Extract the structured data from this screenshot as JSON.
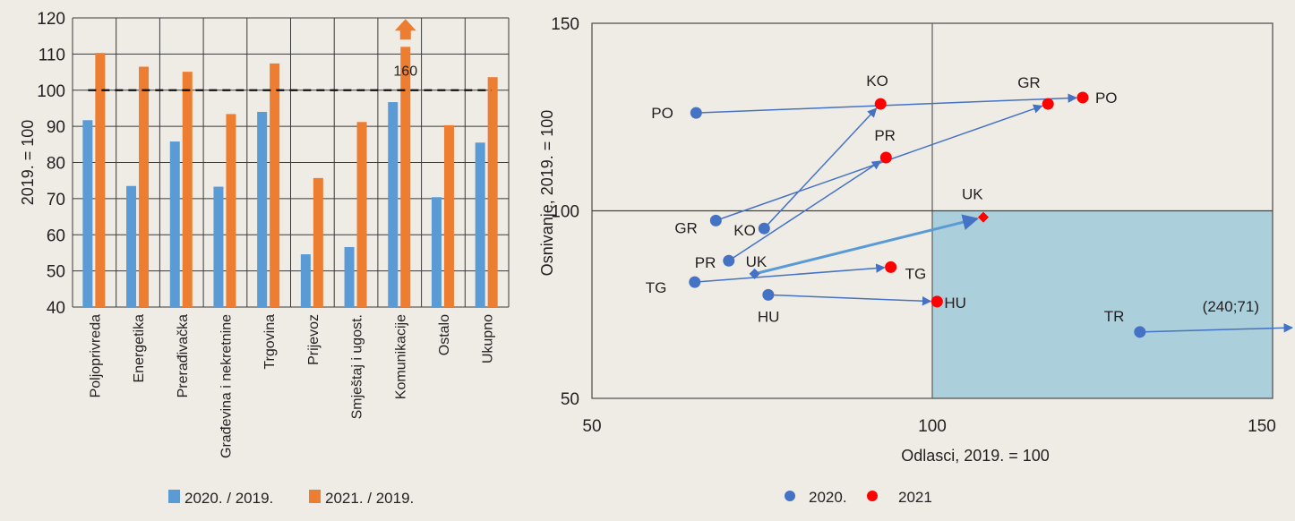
{
  "colors": {
    "background": "#efece6",
    "bar_2020": "#5b9bd5",
    "bar_2021": "#ed7d31",
    "grid": "#3a3a3a",
    "point_2020": "#4472c4",
    "point_2021": "#ff0000",
    "arrow": "#4472c4",
    "arrow_uk": "#5b9bd5",
    "quadrant_fill": "#abd0dc"
  },
  "chart_data": [
    {
      "type": "bar",
      "title": "",
      "xlabel": "",
      "ylabel": "2019. = 100",
      "ylim": [
        40,
        120
      ],
      "yticks": [
        "40",
        "50",
        "60",
        "70",
        "80",
        "90",
        "100",
        "110",
        "120"
      ],
      "grid": true,
      "reference_line": {
        "value": 100,
        "style": "dashed"
      },
      "categories": [
        "Poljoprivreda",
        "Energetika",
        "Prerađivačka",
        "Građevina i nekretnine",
        "Trgovina",
        "Prijevoz",
        "Smještaj i ugost.",
        "Komunikacije",
        "Ostalo",
        "Ukupno"
      ],
      "series": [
        {
          "name": "2020. / 2019.",
          "values": [
            91.7,
            73.5,
            85.8,
            73.3,
            94.0,
            54.6,
            56.6,
            96.7,
            70.4,
            85.5
          ]
        },
        {
          "name": "2021. / 2019.",
          "values": [
            110.3,
            106.5,
            105.1,
            93.4,
            107.4,
            75.7,
            91.2,
            160,
            90.3,
            103.6
          ]
        }
      ],
      "annotations": [
        {
          "category": "Komunikacije",
          "series": "2021. / 2019.",
          "text": "160",
          "note": "bar exceeds axis, shown with up-arrow"
        }
      ],
      "legend": {
        "placement": "bottom",
        "entries": [
          "2020. / 2019.",
          "2021. / 2019."
        ]
      }
    },
    {
      "type": "scatter",
      "title": "",
      "xlabel": "Odlasci, 2019. = 100",
      "ylabel": "Osnivanje, 2019. = 100",
      "xlim": [
        50,
        150
      ],
      "ylim": [
        50,
        150
      ],
      "xticks": [
        "50",
        "100",
        "150"
      ],
      "yticks": [
        "50",
        "100",
        "150"
      ],
      "reference_lines": {
        "x": 100,
        "y": 100
      },
      "shaded_quadrant": {
        "x": [
          100,
          150
        ],
        "y": [
          50,
          100
        ]
      },
      "legend": {
        "placement": "bottom",
        "entries": [
          "2020.",
          "2021"
        ]
      },
      "points": [
        {
          "label": "PO",
          "x2020": 65.3,
          "y2020": 126.1,
          "x2021": 122.1,
          "y2021": 130.2,
          "marker": "circle"
        },
        {
          "label": "KO",
          "x2020": 75.3,
          "y2020": 95.3,
          "x2021": 92.4,
          "y2021": 128.5,
          "marker": "circle"
        },
        {
          "label": "GR",
          "x2020": 68.2,
          "y2020": 97.4,
          "x2021": 117.0,
          "y2021": 128.5,
          "marker": "circle",
          "via": [
            93.2,
            114.2
          ]
        },
        {
          "label": "PR",
          "x2020": 70.1,
          "y2020": 86.7,
          "x2021": 93.2,
          "y2021": 114.2,
          "marker": "circle"
        },
        {
          "label": "UK",
          "x2020": 73.9,
          "y2020": 83.2,
          "x2021": 107.5,
          "y2021": 98.3,
          "marker": "diamond"
        },
        {
          "label": "TG",
          "x2020": 65.1,
          "y2020": 81.0,
          "x2021": 93.9,
          "y2021": 85.0,
          "marker": "circle"
        },
        {
          "label": "HU",
          "x2020": 75.9,
          "y2020": 77.6,
          "x2021": 100.7,
          "y2021": 75.8,
          "marker": "circle"
        },
        {
          "label": "TR",
          "x2020": 130.5,
          "y2020": 67.7,
          "x2021": 240,
          "y2021": 71,
          "marker": "circle",
          "offscale_label": "(240;71)"
        }
      ]
    }
  ]
}
